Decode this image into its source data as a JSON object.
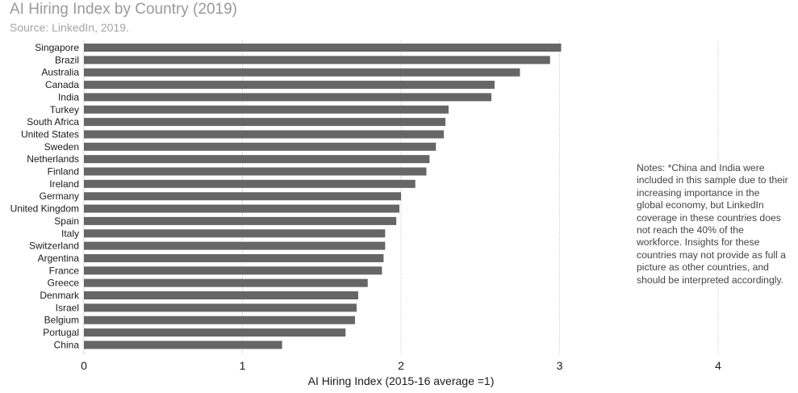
{
  "title": "AI Hiring Index by Country (2019)",
  "subtitle": "Source: LinkedIn, 2019.",
  "notes": "Notes: *China and India were included in this sample due to their increasing importance in the global economy, but LinkedIn coverage in these countries does not reach the 40% of the workforce. Insights for these countries may not provide as full a picture as other countries, and should be interpreted accordingly.",
  "colors": {
    "bar": "#666666",
    "grid": "#d9d9d9",
    "label": "#1a1a1a",
    "title": "#9a9a9a"
  },
  "chart_data": {
    "type": "bar",
    "orientation": "horizontal",
    "title": "AI Hiring Index by Country (2019)",
    "subtitle": "Source: LinkedIn, 2019.",
    "xlabel": "AI Hiring Index (2015-16 average =1)",
    "ylabel": "",
    "xlim": [
      0,
      4.5
    ],
    "xticks": [
      0,
      1,
      2,
      3,
      4
    ],
    "grid": "vertical",
    "categories": [
      "Singapore",
      "Brazil",
      "Australia",
      "Canada",
      "India",
      "Turkey",
      "South Africa",
      "United States",
      "Sweden",
      "Netherlands",
      "Finland",
      "Ireland",
      "Germany",
      "United Kingdom",
      "Spain",
      "Italy",
      "Switzerland",
      "Argentina",
      "France",
      "Greece",
      "Denmark",
      "Israel",
      "Belgium",
      "Portugal",
      "China"
    ],
    "values": [
      3.01,
      2.94,
      2.75,
      2.59,
      2.57,
      2.3,
      2.28,
      2.27,
      2.22,
      2.18,
      2.16,
      2.09,
      2.0,
      1.99,
      1.97,
      1.9,
      1.9,
      1.89,
      1.88,
      1.79,
      1.73,
      1.72,
      1.71,
      1.65,
      1.25
    ]
  }
}
